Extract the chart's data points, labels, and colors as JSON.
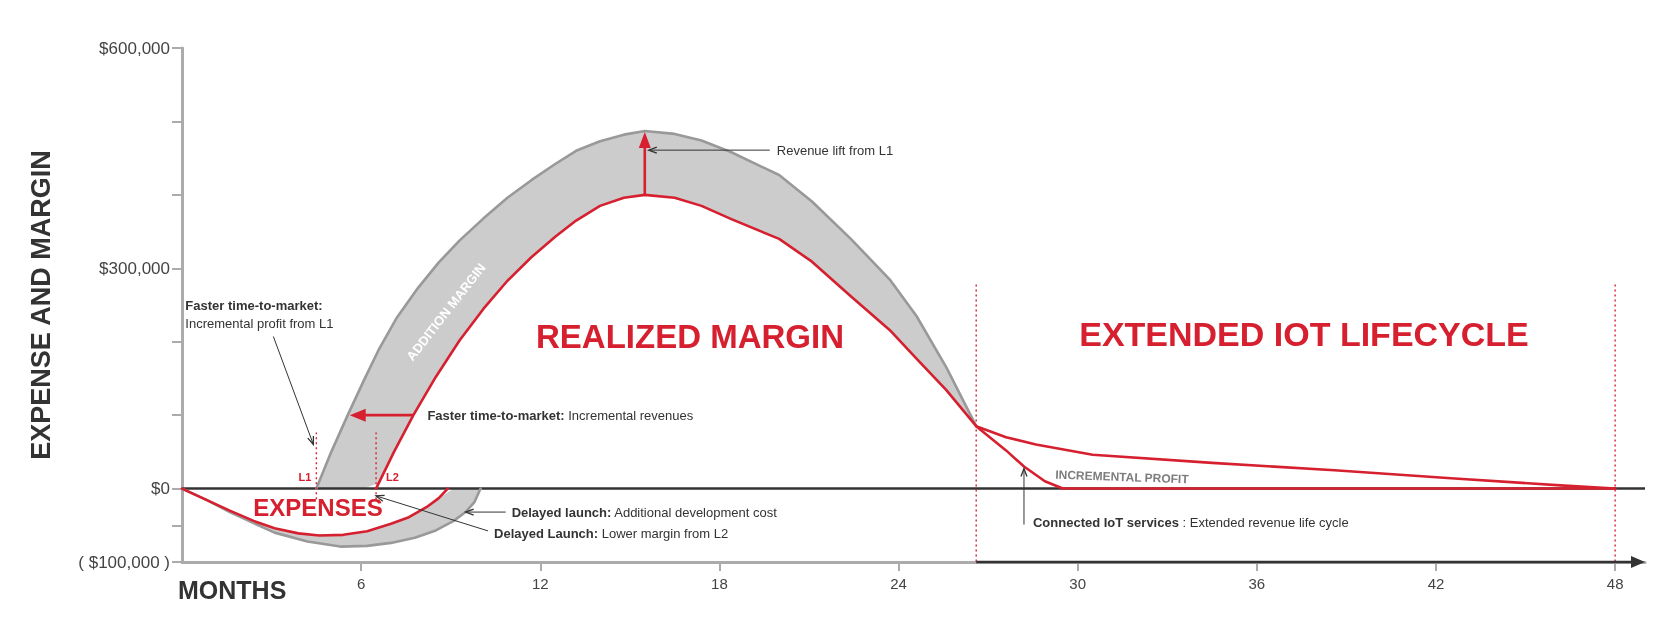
{
  "chart_data": {
    "type": "line",
    "xlabel": "MONTHS",
    "ylabel": "EXPENSE AND MARGIN",
    "xlim": [
      0,
      49
    ],
    "xticks": [
      6,
      12,
      18,
      24,
      30,
      36,
      42,
      48
    ],
    "ylim": [
      -100000,
      600000
    ],
    "yticks": [
      {
        "value": -100000,
        "label": "( $100,000 )"
      },
      {
        "value": -50000,
        "label": null
      },
      {
        "value": 0,
        "label": "$0"
      },
      {
        "value": 100000,
        "label": null
      },
      {
        "value": 200000,
        "label": null
      },
      {
        "value": 300000,
        "label": "$300,000"
      },
      {
        "value": 400000,
        "label": null
      },
      {
        "value": 500000,
        "label": null
      },
      {
        "value": 600000,
        "label": "$600,000"
      }
    ],
    "series": [
      {
        "color": "#999999",
        "x": [
          4.5,
          5.0,
          5.55,
          6.1,
          6.6,
          7.2,
          7.9,
          8.6,
          9.3,
          10.1,
          10.9,
          11.7,
          12.5,
          13.2,
          14.0,
          14.8,
          15.5,
          16.5,
          17.4,
          18.4,
          20.0,
          21.1,
          22.4,
          23.7,
          24.6,
          25.6,
          26.6
        ],
        "values": [
          0,
          50000,
          100000,
          148000,
          190000,
          233000,
          273000,
          308000,
          338000,
          368000,
          396000,
          420000,
          442000,
          460000,
          473000,
          482000,
          487000,
          483000,
          474000,
          458000,
          427000,
          391000,
          340000,
          285000,
          235000,
          165000,
          85000
        ],
        "lower": [
          0,
          0,
          0,
          0,
          8000,
          58000,
          110000,
          158000,
          202000,
          245000,
          283000,
          315000,
          343000,
          365000,
          385000,
          396000,
          400000,
          396000,
          385000,
          367000,
          340000,
          309000,
          262000,
          216000,
          177000,
          134000,
          85000
        ],
        "upper": [
          0,
          50000,
          100000,
          148000,
          190000,
          233000,
          273000,
          308000,
          338000,
          368000,
          396000,
          420000,
          442000,
          460000,
          473000,
          482000,
          487000,
          483000,
          474000,
          458000,
          427000,
          391000,
          340000,
          285000,
          235000,
          165000,
          85000
        ]
      },
      {
        "color": "#d6202f",
        "x": [
          6.5,
          7.1,
          7.75,
          8.5,
          9.3,
          10.1,
          10.9,
          11.7,
          12.5,
          13.2,
          14.0,
          14.8,
          15.5,
          16.5,
          17.4,
          18.4,
          20.0,
          21.1,
          22.4,
          23.7,
          24.6,
          25.6,
          26.6,
          27.6,
          28.2,
          28.9,
          29.5,
          48
        ],
        "values": [
          0,
          50000,
          100000,
          152000,
          202000,
          245000,
          283000,
          315000,
          343000,
          365000,
          385000,
          396000,
          400000,
          396000,
          385000,
          367000,
          340000,
          309000,
          262000,
          216000,
          177000,
          134000,
          85000,
          52000,
          30000,
          10000,
          0,
          0
        ]
      },
      {
        "color": "#999999",
        "x": [
          0,
          0.8,
          1.6,
          2.4,
          3.1,
          4.2,
          5.3,
          6.2,
          7.0,
          7.8,
          8.5,
          9.1,
          9.5,
          9.8,
          10.0
        ],
        "values": [
          0,
          -15000,
          -32000,
          -47000,
          -60000,
          -72000,
          -79000,
          -78000,
          -74000,
          -67000,
          -57000,
          -44000,
          -32000,
          -18000,
          0
        ],
        "lower": [
          0,
          -15000,
          -32000,
          -47000,
          -60000,
          -72000,
          -79000,
          -78000,
          -74000,
          -67000,
          -57000,
          -44000,
          -32000,
          -18000,
          0
        ],
        "upper": [
          0,
          -15000,
          -30000,
          -44000,
          -54000,
          -62000,
          -63000,
          -58000,
          -48000,
          -34000,
          -16000,
          0,
          0,
          0,
          0
        ]
      },
      {
        "color": "#d6202f",
        "x": [
          0,
          0.8,
          1.6,
          2.4,
          3.1,
          3.9,
          4.6,
          5.4,
          6.2,
          7.0,
          7.6,
          8.2,
          8.6,
          8.9
        ],
        "values": [
          0,
          -15000,
          -30000,
          -44000,
          -54000,
          -61000,
          -64000,
          -63000,
          -58000,
          -48000,
          -39000,
          -25000,
          -13000,
          0
        ]
      },
      {
        "color": "#d6202f",
        "x": [
          26.6,
          27.6,
          28.6,
          30.5,
          34.5,
          38.6,
          42.5,
          46.3,
          48
        ],
        "values": [
          85000,
          70000,
          60000,
          46000,
          35000,
          25000,
          14000,
          4000,
          0
        ]
      }
    ],
    "ref_lines": [
      {
        "axis": "x",
        "value": 4.5,
        "label": "L1",
        "color": "#d6202f",
        "line_style": "dotted"
      },
      {
        "axis": "x",
        "value": 6.5,
        "label": "L2",
        "color": "#d6202f",
        "line_style": "dotted"
      },
      {
        "axis": "x",
        "value": 26.6,
        "color": "#d6202f",
        "line_style": "dotted"
      },
      {
        "axis": "x",
        "value": 48,
        "color": "#d6202f",
        "line_style": "dotted"
      },
      {
        "axis": "y",
        "value": 0,
        "color": "#333333"
      }
    ],
    "annotations": [
      "REALIZED MARGIN",
      "EXPENSES",
      "EXTENDED IOT LIFECYCLE",
      "ADDITION MARGIN",
      "INCREMENTAL PROFIT",
      {
        "text": "Faster time-to-market:\nIncremental profit from L1",
        "x": 4.4,
        "y": 60000
      },
      {
        "text": "Faster time-to-market: Incremental revenues",
        "x": 7.75,
        "y": 100000
      },
      "Revenue lift from L1",
      {
        "text": "Delayed launch: Additional development cost",
        "x": 9.5,
        "y": -32000
      },
      {
        "text": "Delayed Launch: Lower margin from L2",
        "x": 6.5,
        "y": -10000
      },
      {
        "text": "Connected IoT services : Extended revenue life cycle",
        "x": 28.2,
        "y": 30000
      }
    ]
  }
}
